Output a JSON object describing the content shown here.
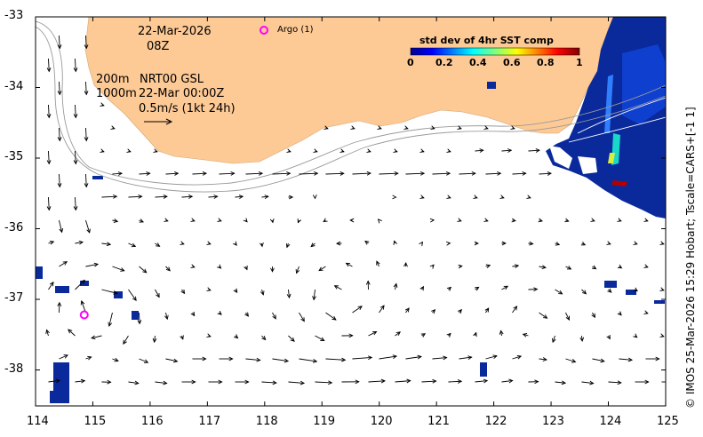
{
  "date": "22-Mar-2026",
  "time": "08Z",
  "depth_line": "200m",
  "product": "NRT00 GSL",
  "contour_line": "1000m",
  "map_time": "22-Mar 00:00Z",
  "scale_label": "0.5m/s (1kt 24h)",
  "argo_legend": "Argo (1)",
  "colorbar": {
    "title": "std dev of 4hr SST comp",
    "ticks": [
      "0",
      "0.2",
      "0.4",
      "0.6",
      "0.8",
      "1"
    ]
  },
  "x_ticks": [
    "114",
    "115",
    "116",
    "117",
    "118",
    "119",
    "120",
    "121",
    "122",
    "123",
    "124",
    "125"
  ],
  "y_ticks": [
    "-33",
    "-34",
    "-35",
    "-36",
    "-37",
    "-38"
  ],
  "credit": "© IMOS 25-Mar-2026 15:29 Hobart; Tscale=CARS+[-1 1]",
  "argo_float": {
    "lon": 114.85,
    "lat": -37.22
  },
  "colors": {
    "land": "#fdc995",
    "argo": "#ff00ff",
    "sst_patch": "#0a2a9c",
    "frame": "#000000"
  }
}
